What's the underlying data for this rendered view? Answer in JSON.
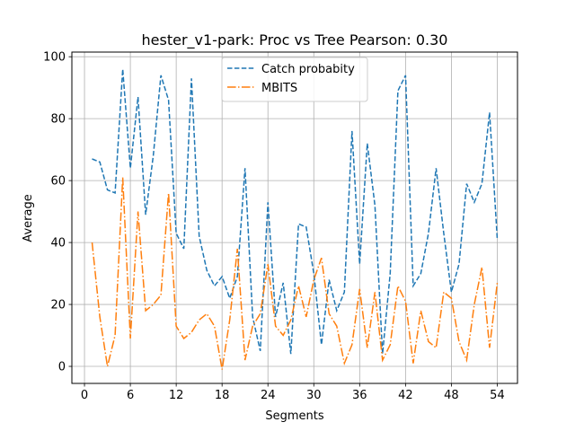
{
  "chart_data": {
    "type": "line",
    "title": "hester_v1-park: Proc vs Tree Pearson: 0.30",
    "xlabel": "Segments",
    "ylabel": "Average",
    "xlim": [
      -1.65,
      56.65
    ],
    "ylim": [
      -5.5,
      101.5
    ],
    "xticks": [
      0,
      6,
      12,
      18,
      24,
      30,
      36,
      42,
      48,
      54
    ],
    "yticks": [
      0,
      20,
      40,
      60,
      80,
      100
    ],
    "grid": true,
    "legend_position": "top-center",
    "x": [
      1,
      2,
      3,
      4,
      5,
      6,
      7,
      8,
      9,
      10,
      11,
      12,
      13,
      14,
      15,
      16,
      17,
      18,
      19,
      20,
      21,
      22,
      23,
      24,
      25,
      26,
      27,
      28,
      29,
      30,
      31,
      32,
      33,
      34,
      35,
      36,
      37,
      38,
      39,
      40,
      41,
      42,
      43,
      44,
      45,
      46,
      47,
      48,
      49,
      50,
      51,
      52,
      53,
      54
    ],
    "series": [
      {
        "name": "Catch probabity",
        "color": "#1f77b4",
        "dash": "dashed",
        "values": [
          67,
          66,
          57,
          56,
          96,
          64,
          87,
          49,
          68,
          94,
          86,
          43,
          38,
          93,
          42,
          31,
          26,
          29,
          22,
          29,
          64,
          16,
          5,
          53,
          16,
          27,
          4,
          46,
          45,
          30,
          7,
          28,
          18,
          24,
          76,
          33,
          72,
          52,
          4,
          30,
          89,
          94,
          26,
          30,
          43,
          64,
          43,
          24,
          33,
          59,
          53,
          59,
          82,
          41
        ]
      },
      {
        "name": "MBITS",
        "color": "#ff7f0e",
        "dash": "dashdot",
        "values": [
          40,
          16,
          0,
          10,
          61,
          9,
          50,
          18,
          20,
          23,
          56,
          13,
          9,
          11,
          15,
          17,
          13,
          -1,
          15,
          38,
          2,
          13,
          17,
          33,
          13,
          10,
          15,
          26,
          16,
          28,
          35,
          17,
          13,
          1,
          7,
          25,
          6,
          24,
          2,
          7,
          26,
          21,
          1,
          18,
          8,
          6,
          24,
          22,
          8,
          2,
          20,
          32,
          6,
          27
        ]
      }
    ]
  }
}
